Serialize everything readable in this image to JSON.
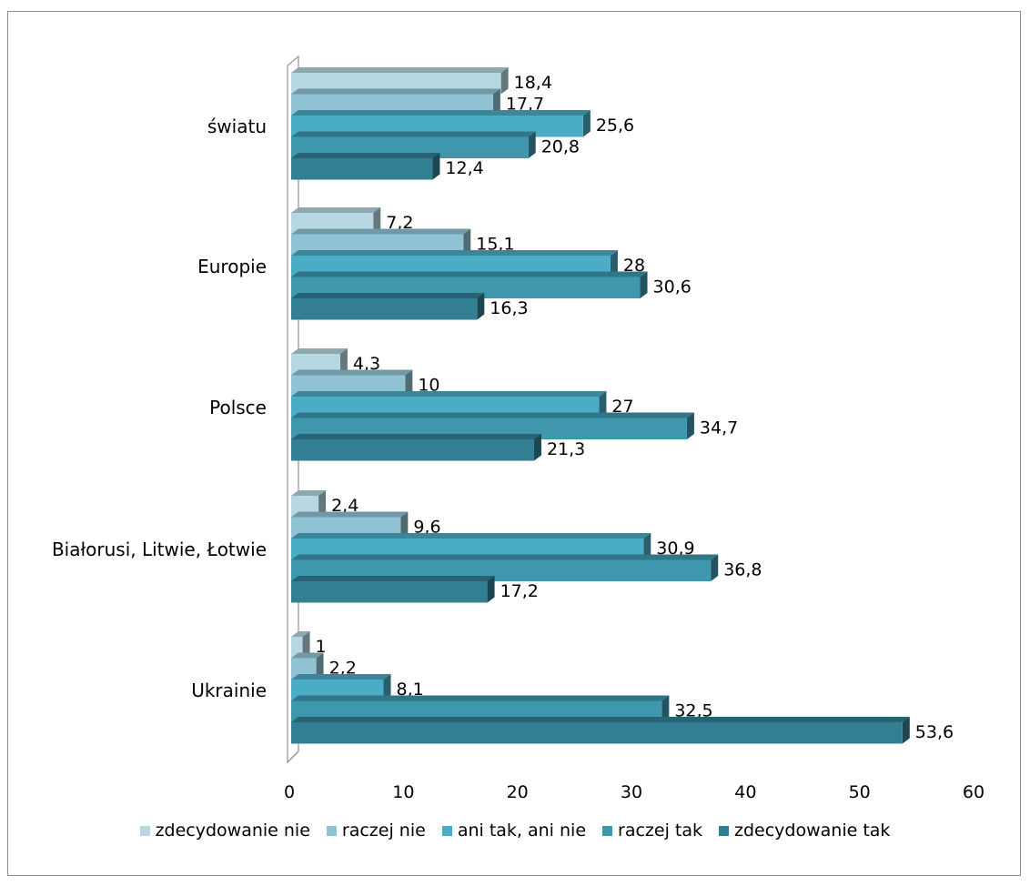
{
  "chart_data": {
    "type": "bar",
    "orientation": "horizontal",
    "categories": [
      "światu",
      "Europie",
      "Polsce",
      "Białorusi, Litwie, Łotwie",
      "Ukrainie"
    ],
    "series": [
      {
        "name": "zdecydowanie nie",
        "color": "#b7d8e2",
        "values": [
          18.4,
          7.2,
          4.3,
          2.4,
          1
        ]
      },
      {
        "name": "raczej nie",
        "color": "#8fc3d3",
        "values": [
          17.7,
          15.1,
          10,
          9.6,
          2.2
        ]
      },
      {
        "name": "ani tak, ani nie",
        "color": "#4bacc6",
        "values": [
          25.6,
          28,
          27,
          30.9,
          8.1
        ]
      },
      {
        "name": "raczej tak",
        "color": "#3f97ae",
        "values": [
          20.8,
          30.6,
          34.7,
          36.8,
          32.5
        ]
      },
      {
        "name": "zdecydowanie tak",
        "color": "#327f93",
        "values": [
          12.4,
          16.3,
          21.3,
          17.2,
          53.6
        ]
      }
    ],
    "value_labels": [
      [
        "18,4",
        "7,2",
        "4,3",
        "2,4",
        "1"
      ],
      [
        "17,7",
        "15,1",
        "10",
        "9,6",
        "2,2"
      ],
      [
        "25,6",
        "28",
        "27",
        "30,9",
        "8,1"
      ],
      [
        "20,8",
        "30,6",
        "34,7",
        "36,8",
        "32,5"
      ],
      [
        "12,4",
        "16,3",
        "21,3",
        "17,2",
        "53,6"
      ]
    ],
    "xlim": [
      0,
      60
    ],
    "xticks": [
      "0",
      "10",
      "20",
      "30",
      "40",
      "50",
      "60"
    ],
    "legend_position": "bottom",
    "grid": false
  }
}
